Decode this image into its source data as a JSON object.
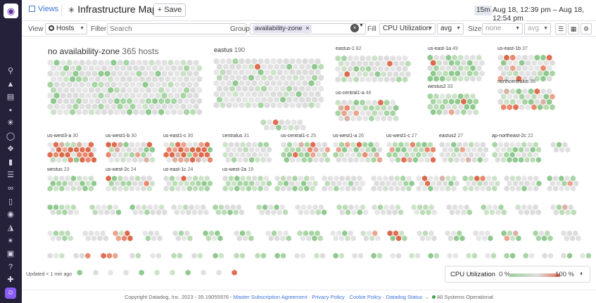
{
  "topbar": {
    "views_label": "Views",
    "title": "Infrastructure Map",
    "save_label": "Save",
    "time_badge": "15m",
    "time_range": "Aug 18, 12:39 pm – Aug 18, 12:54 pm"
  },
  "filters": {
    "view_label": "View",
    "view_value": "Hosts",
    "filter_label": "Filter",
    "filter_placeholder": "Search",
    "group_label": "Group",
    "group_chip": "availability-zone",
    "fill_label": "Fill",
    "fill_metric": "CPU Utilization",
    "fill_agg": "avg",
    "size_label": "Size",
    "size_value": "none",
    "size_agg": "avg"
  },
  "colors": {
    "green": "#8fc98f",
    "grey": "#e1e1e1",
    "orange": "#e06e52",
    "sidebar": "#25213b",
    "accent": "#3b73d6"
  },
  "groups": {
    "g0": {
      "label": "no availability-zone",
      "count": "365 hosts"
    },
    "g1": {
      "label": "eastus",
      "count": "190"
    },
    "g2": {
      "label": "eastus-1",
      "count": "82"
    },
    "g3": {
      "label": "us-east-1a",
      "count": "49"
    },
    "g4": {
      "label": "us-east-1b",
      "count": "37"
    },
    "g5": {
      "label": "westus2",
      "count": "33"
    },
    "g6": {
      "label": "northcentralus",
      "count": "36"
    },
    "g7": {
      "label": "us-central1-a",
      "count": "46"
    },
    "g8": {
      "label": "us-west3-a",
      "count": "30"
    },
    "g9": {
      "label": "us-west1-b",
      "count": "30"
    },
    "g10": {
      "label": "us-east1-c",
      "count": "30"
    },
    "g11": {
      "label": "centralus",
      "count": "31"
    },
    "g12": {
      "label": "us-central1-c",
      "count": "25"
    },
    "g13": {
      "label": "us-west1-a",
      "count": "26"
    },
    "g14": {
      "label": "us-west1-c",
      "count": "27"
    },
    "g15": {
      "label": "eastus2",
      "count": "27"
    },
    "g16": {
      "label": "ap-northeast-2c",
      "count": "22"
    },
    "g17": {
      "label": "westus",
      "count": "23"
    },
    "g18": {
      "label": "us-west-2c",
      "count": "24"
    },
    "g19": {
      "label": "us-east-1c",
      "count": "24"
    },
    "g20": {
      "label": "us-west-2a",
      "count": "19"
    }
  },
  "updated_text": "Updated < 1 min ago",
  "legend": {
    "title": "CPU Utilization",
    "min": "0 %",
    "max": "100 %"
  },
  "footer": {
    "copyright": "Copyright Datadog, Inc. 2023 - 35.19055976 -",
    "link_msa": "Master Subscription Agreement",
    "sep1": "·",
    "link_privacy": "Privacy Policy",
    "sep2": "·",
    "link_cookie": "Cookie Policy",
    "sep3": "·",
    "link_status": "Datadog Status",
    "status_arrow": "→",
    "status_text": "All Systems Operational"
  }
}
